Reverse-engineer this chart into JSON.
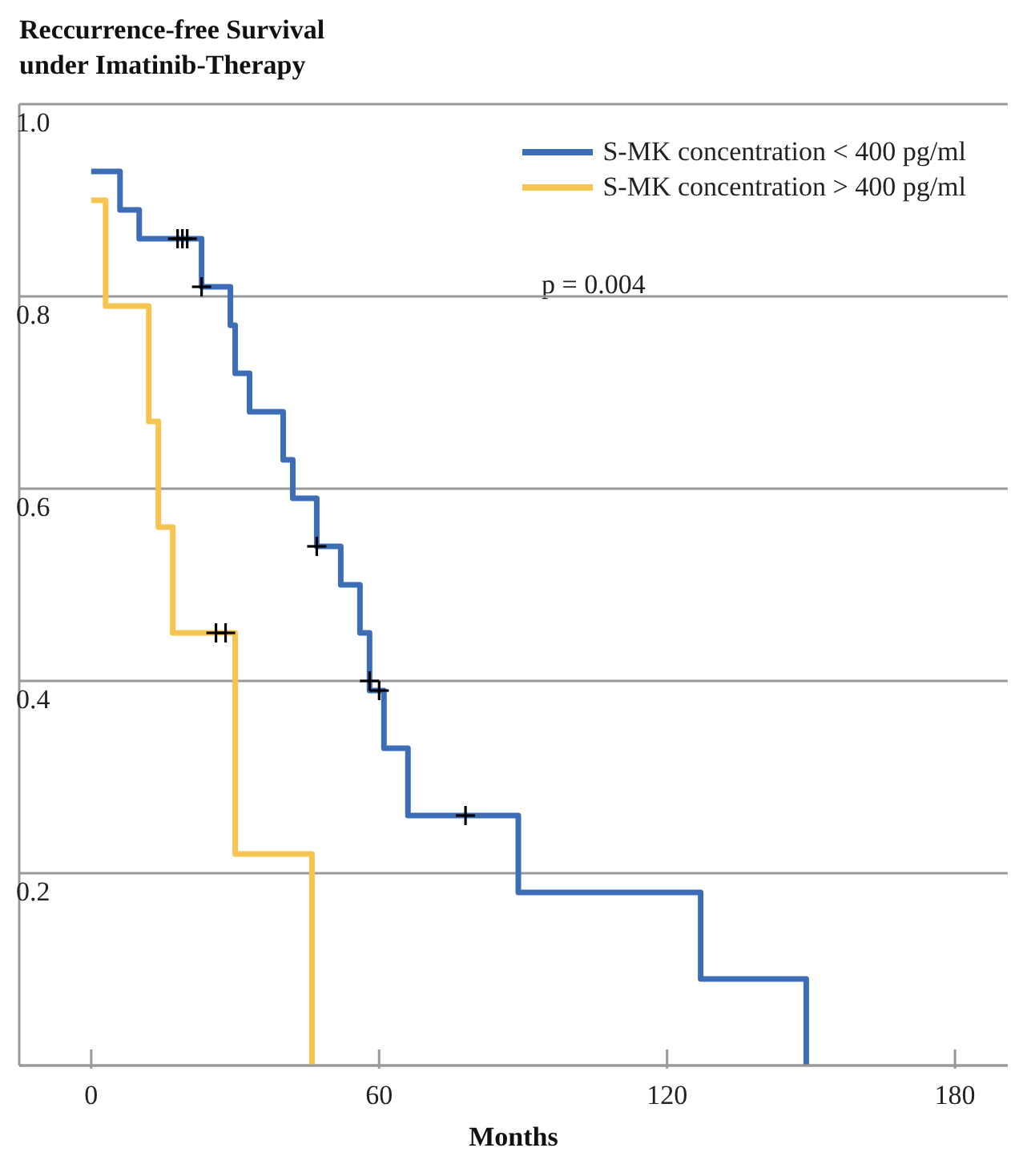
{
  "chart_data": {
    "type": "step",
    "title": "Reccurrence-free Survival\nunder Imatinib-Therapy",
    "xlabel": "Months",
    "xlim": [
      -15,
      191
    ],
    "xticks": [
      0,
      60,
      120,
      180
    ],
    "ylim": [
      0,
      1
    ],
    "yticks": [
      {
        "value": 0.2,
        "label": "0.2"
      },
      {
        "value": 0.4,
        "label": "0.4"
      },
      {
        "value": 0.6,
        "label": "0.6"
      },
      {
        "value": 0.8,
        "label": "0.8"
      },
      {
        "value": 1,
        "label": "1.0"
      }
    ],
    "grid": "y",
    "legend": "top right",
    "annotations": [
      "p = 0.004"
    ],
    "series": [
      {
        "name": "S-MK concentration < 400 pg/ml",
        "color": "#3d6db5",
        "x": [
          0,
          6,
          10,
          23,
          29,
          30,
          33,
          40,
          42,
          47,
          52,
          56,
          58,
          61,
          66,
          89,
          127,
          149
        ],
        "values": [
          0.93,
          0.89,
          0.86,
          0.81,
          0.77,
          0.72,
          0.68,
          0.63,
          0.59,
          0.54,
          0.5,
          0.45,
          0.39,
          0.33,
          0.26,
          0.18,
          0.09,
          0
        ]
      },
      {
        "name": "S-MK concentration > 400 pg/ml",
        "color": "#f5c451",
        "x": [
          0,
          3,
          12,
          14,
          17,
          30,
          46
        ],
        "values": [
          0.9,
          0.79,
          0.67,
          0.56,
          0.45,
          0.22,
          0
        ]
      },
      {
        "type": "scatter",
        "marker": "cross",
        "color": "#000000",
        "x": [
          18,
          19,
          20,
          23,
          47,
          58,
          60,
          78
        ],
        "values": [
          0.86,
          0.86,
          0.86,
          0.81,
          0.54,
          0.4,
          0.39,
          0.26
        ]
      },
      {
        "type": "scatter",
        "marker": "cross",
        "color": "#000000",
        "x": [
          26,
          28
        ],
        "values": [
          0.45,
          0.45
        ]
      }
    ]
  }
}
